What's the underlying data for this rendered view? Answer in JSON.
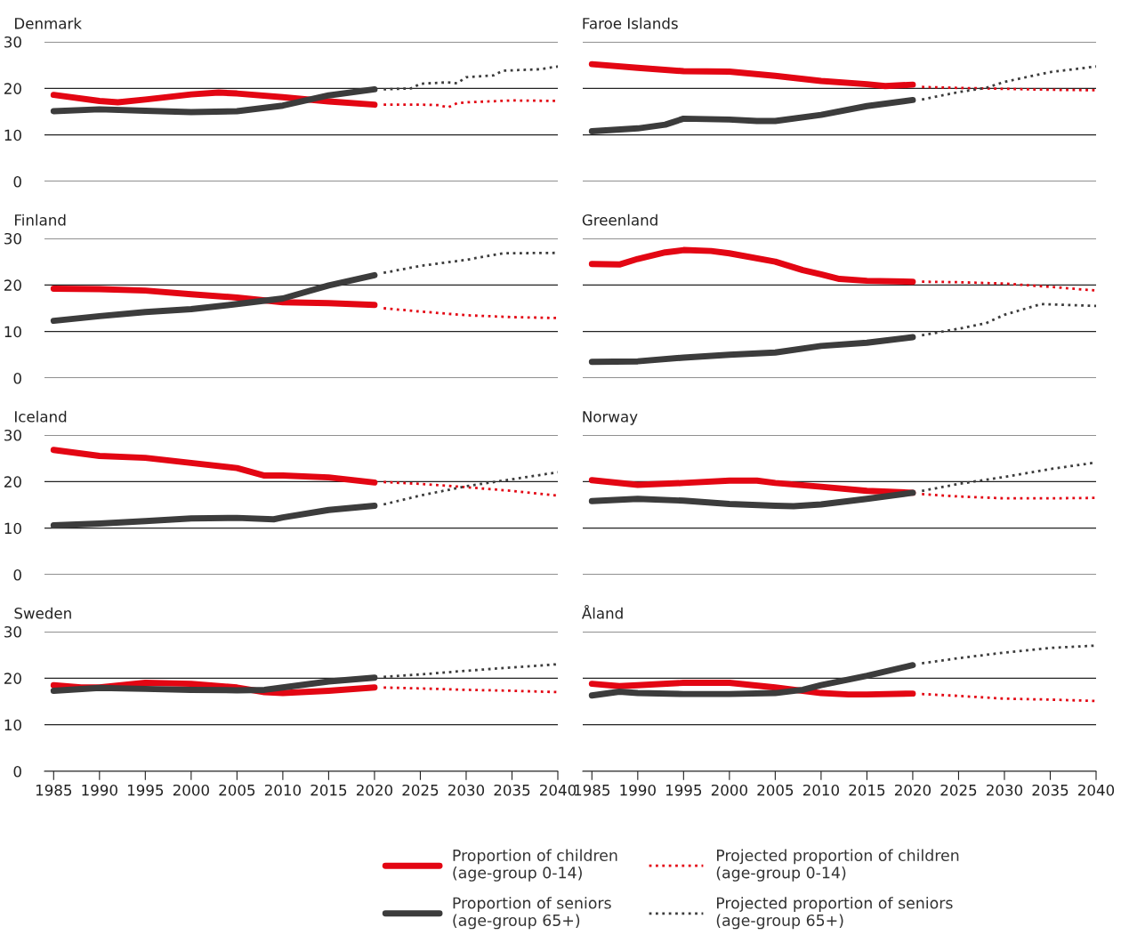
{
  "chart_data": [
    {
      "type": "line",
      "title": "Denmark",
      "xlim": [
        1984,
        2040
      ],
      "ylim": [
        0,
        30
      ],
      "yticks": [
        0,
        10,
        20,
        30
      ],
      "grid": "y",
      "tick_labels": "y",
      "series": [
        {
          "color": "#e30613",
          "line_style": "solid",
          "x": [
            1985,
            1990,
            1992,
            1995,
            2000,
            2003,
            2005,
            2010,
            2015,
            2020
          ],
          "values": [
            18.6,
            17.3,
            17.0,
            17.6,
            18.7,
            19.1,
            18.9,
            18.1,
            17.2,
            16.5
          ]
        },
        {
          "color": "#e30613",
          "line_style": "dotted",
          "x": [
            2021,
            2025,
            2027,
            2028,
            2029,
            2030,
            2035,
            2040
          ],
          "values": [
            16.5,
            16.5,
            16.4,
            15.9,
            16.8,
            17.0,
            17.4,
            17.3
          ]
        },
        {
          "color": "#3c3c3c",
          "line_style": "solid",
          "x": [
            1985,
            1990,
            1995,
            2000,
            2005,
            2010,
            2015,
            2020
          ],
          "values": [
            15.1,
            15.5,
            15.2,
            14.9,
            15.1,
            16.3,
            18.5,
            19.8
          ]
        },
        {
          "color": "#3c3c3c",
          "line_style": "dotted",
          "x": [
            2021,
            2024,
            2025,
            2028,
            2029,
            2030,
            2033,
            2034,
            2038,
            2040
          ],
          "values": [
            19.8,
            20.0,
            21.0,
            21.3,
            21.1,
            22.4,
            22.8,
            23.8,
            24.1,
            24.7
          ]
        }
      ]
    },
    {
      "type": "line",
      "title": "Faroe Islands",
      "xlim": [
        1984,
        2040
      ],
      "ylim": [
        0,
        30
      ],
      "yticks": [
        0,
        10,
        20,
        30
      ],
      "grid": "y",
      "tick_labels": false,
      "series": [
        {
          "color": "#e30613",
          "line_style": "solid",
          "x": [
            1985,
            1990,
            1995,
            2000,
            2005,
            2010,
            2015,
            2017,
            2020
          ],
          "values": [
            25.2,
            24.4,
            23.7,
            23.6,
            22.7,
            21.6,
            20.9,
            20.5,
            20.8
          ]
        },
        {
          "color": "#e30613",
          "line_style": "dotted",
          "x": [
            2021,
            2025,
            2030,
            2035,
            2040
          ],
          "values": [
            20.3,
            20.1,
            19.9,
            19.7,
            19.6
          ]
        },
        {
          "color": "#3c3c3c",
          "line_style": "solid",
          "x": [
            1985,
            1990,
            1993,
            1995,
            2000,
            2003,
            2005,
            2010,
            2015,
            2020
          ],
          "values": [
            10.8,
            11.4,
            12.2,
            13.5,
            13.3,
            13.0,
            13.0,
            14.3,
            16.2,
            17.5
          ]
        },
        {
          "color": "#3c3c3c",
          "line_style": "dotted",
          "x": [
            2021,
            2025,
            2028,
            2030,
            2035,
            2040
          ],
          "values": [
            17.6,
            19.2,
            20.1,
            21.4,
            23.5,
            24.7
          ]
        }
      ]
    },
    {
      "type": "line",
      "title": "Finland",
      "xlim": [
        1984,
        2040
      ],
      "ylim": [
        0,
        30
      ],
      "yticks": [
        0,
        10,
        20,
        30
      ],
      "grid": "y",
      "tick_labels": "y",
      "series": [
        {
          "color": "#e30613",
          "line_style": "solid",
          "x": [
            1985,
            1990,
            1995,
            2000,
            2005,
            2010,
            2015,
            2020
          ],
          "values": [
            19.2,
            19.1,
            18.8,
            18.0,
            17.3,
            16.3,
            16.1,
            15.7
          ]
        },
        {
          "color": "#e30613",
          "line_style": "dotted",
          "x": [
            2021,
            2025,
            2030,
            2035,
            2040
          ],
          "values": [
            15.0,
            14.3,
            13.5,
            13.1,
            12.9
          ]
        },
        {
          "color": "#3c3c3c",
          "line_style": "solid",
          "x": [
            1985,
            1990,
            1995,
            2000,
            2005,
            2010,
            2015,
            2020
          ],
          "values": [
            12.3,
            13.3,
            14.2,
            14.8,
            15.9,
            17.1,
            19.9,
            22.1
          ]
        },
        {
          "color": "#3c3c3c",
          "line_style": "dotted",
          "x": [
            2021,
            2025,
            2030,
            2034,
            2040
          ],
          "values": [
            22.6,
            24.1,
            25.4,
            26.8,
            26.9
          ]
        }
      ]
    },
    {
      "type": "line",
      "title": "Greenland",
      "xlim": [
        1984,
        2040
      ],
      "ylim": [
        0,
        30
      ],
      "yticks": [
        0,
        10,
        20,
        30
      ],
      "grid": "y",
      "tick_labels": false,
      "series": [
        {
          "color": "#e30613",
          "line_style": "solid",
          "x": [
            1985,
            1988,
            1990,
            1993,
            1995,
            1998,
            2000,
            2005,
            2008,
            2010,
            2012,
            2015,
            2020
          ],
          "values": [
            24.5,
            24.4,
            25.6,
            27.0,
            27.5,
            27.3,
            26.8,
            25.0,
            23.2,
            22.3,
            21.3,
            20.9,
            20.7
          ]
        },
        {
          "color": "#e30613",
          "line_style": "dotted",
          "x": [
            2021,
            2025,
            2030,
            2035,
            2040
          ],
          "values": [
            20.7,
            20.6,
            20.3,
            19.6,
            18.8
          ]
        },
        {
          "color": "#3c3c3c",
          "line_style": "solid",
          "x": [
            1985,
            1990,
            1995,
            2000,
            2005,
            2010,
            2015,
            2020
          ],
          "values": [
            3.5,
            3.6,
            4.4,
            5.0,
            5.5,
            6.9,
            7.6,
            8.8
          ]
        },
        {
          "color": "#3c3c3c",
          "line_style": "dotted",
          "x": [
            2021,
            2025,
            2028,
            2030,
            2034,
            2040
          ],
          "values": [
            9.2,
            10.6,
            11.8,
            13.6,
            15.9,
            15.5
          ]
        }
      ]
    },
    {
      "type": "line",
      "title": "Iceland",
      "xlim": [
        1984,
        2040
      ],
      "ylim": [
        0,
        30
      ],
      "yticks": [
        0,
        10,
        20,
        30
      ],
      "grid": "y",
      "tick_labels": "y",
      "series": [
        {
          "color": "#e30613",
          "line_style": "solid",
          "x": [
            1985,
            1990,
            1995,
            2000,
            2005,
            2008,
            2010,
            2015,
            2020
          ],
          "values": [
            26.8,
            25.5,
            25.1,
            24.0,
            22.9,
            21.3,
            21.3,
            20.9,
            19.8
          ]
        },
        {
          "color": "#e30613",
          "line_style": "dotted",
          "x": [
            2021,
            2025,
            2030,
            2035,
            2040
          ],
          "values": [
            19.9,
            19.5,
            18.8,
            18.0,
            17.0
          ]
        },
        {
          "color": "#3c3c3c",
          "line_style": "solid",
          "x": [
            1985,
            1990,
            1995,
            2000,
            2005,
            2009,
            2010,
            2015,
            2020
          ],
          "values": [
            10.6,
            11.0,
            11.5,
            12.1,
            12.2,
            11.9,
            12.3,
            13.9,
            14.8
          ]
        },
        {
          "color": "#3c3c3c",
          "line_style": "dotted",
          "x": [
            2021,
            2025,
            2030,
            2035,
            2040
          ],
          "values": [
            15.1,
            17.0,
            19.0,
            20.5,
            22.0
          ]
        }
      ]
    },
    {
      "type": "line",
      "title": "Norway",
      "xlim": [
        1984,
        2040
      ],
      "ylim": [
        0,
        30
      ],
      "yticks": [
        0,
        10,
        20,
        30
      ],
      "grid": "y",
      "tick_labels": false,
      "series": [
        {
          "color": "#e30613",
          "line_style": "solid",
          "x": [
            1985,
            1990,
            1995,
            2000,
            2003,
            2005,
            2010,
            2015,
            2020
          ],
          "values": [
            20.3,
            19.3,
            19.7,
            20.2,
            20.2,
            19.7,
            18.9,
            18.0,
            17.6
          ]
        },
        {
          "color": "#e30613",
          "line_style": "dotted",
          "x": [
            2021,
            2025,
            2030,
            2035,
            2040
          ],
          "values": [
            17.3,
            16.8,
            16.4,
            16.4,
            16.5
          ]
        },
        {
          "color": "#3c3c3c",
          "line_style": "solid",
          "x": [
            1985,
            1990,
            1995,
            2000,
            2005,
            2007,
            2010,
            2015,
            2020
          ],
          "values": [
            15.8,
            16.3,
            15.9,
            15.2,
            14.8,
            14.7,
            15.1,
            16.3,
            17.6
          ]
        },
        {
          "color": "#3c3c3c",
          "line_style": "dotted",
          "x": [
            2021,
            2025,
            2030,
            2035,
            2040
          ],
          "values": [
            18.0,
            19.5,
            21.0,
            22.7,
            24.1
          ]
        }
      ]
    },
    {
      "type": "line",
      "title": "Sweden",
      "xlim": [
        1984,
        2040
      ],
      "ylim": [
        0,
        30
      ],
      "yticks": [
        0,
        10,
        20,
        30
      ],
      "xticks": [
        1985,
        1990,
        1995,
        2000,
        2005,
        2010,
        2015,
        2020,
        2025,
        2030,
        2035,
        2040
      ],
      "grid": "y",
      "series": [
        {
          "color": "#e30613",
          "line_style": "solid",
          "x": [
            1985,
            1988,
            1990,
            1995,
            2000,
            2005,
            2008,
            2010,
            2015,
            2020
          ],
          "values": [
            18.5,
            18.0,
            18.0,
            19.0,
            18.8,
            18.0,
            17.0,
            16.8,
            17.3,
            18.0
          ]
        },
        {
          "color": "#e30613",
          "line_style": "dotted",
          "x": [
            2021,
            2025,
            2030,
            2035,
            2040
          ],
          "values": [
            18.0,
            17.8,
            17.5,
            17.3,
            17.0
          ]
        },
        {
          "color": "#3c3c3c",
          "line_style": "solid",
          "x": [
            1985,
            1990,
            1995,
            2000,
            2005,
            2008,
            2010,
            2015,
            2020
          ],
          "values": [
            17.3,
            17.9,
            17.7,
            17.5,
            17.4,
            17.5,
            18.0,
            19.3,
            20.1
          ]
        },
        {
          "color": "#3c3c3c",
          "line_style": "dotted",
          "x": [
            2021,
            2025,
            2030,
            2035,
            2040
          ],
          "values": [
            20.3,
            20.8,
            21.6,
            22.3,
            23.0
          ]
        }
      ]
    },
    {
      "type": "line",
      "title": "Åland",
      "xlim": [
        1984,
        2040
      ],
      "ylim": [
        0,
        30
      ],
      "yticks": [
        0,
        10,
        20,
        30
      ],
      "xticks": [
        1985,
        1990,
        1995,
        2000,
        2005,
        2010,
        2015,
        2020,
        2025,
        2030,
        2035,
        2040
      ],
      "grid": "y",
      "tick_labels": "x",
      "legend": "bottom",
      "series": [
        {
          "name": "Proportion of children\n(age-group 0-14)",
          "color": "#e30613",
          "line_style": "solid",
          "x": [
            1985,
            1988,
            1990,
            1995,
            2000,
            2005,
            2010,
            2013,
            2015,
            2020
          ],
          "values": [
            18.8,
            18.3,
            18.5,
            19.0,
            19.0,
            18.0,
            16.8,
            16.5,
            16.5,
            16.7
          ]
        },
        {
          "name": "Projected proportion of children\n(age-group 0-14)",
          "color": "#e30613",
          "line_style": "dotted",
          "x": [
            2021,
            2025,
            2030,
            2035,
            2040
          ],
          "values": [
            16.6,
            16.2,
            15.6,
            15.4,
            15.1
          ]
        },
        {
          "name": "Proportion of seniors\n(age-group 65+)",
          "color": "#3c3c3c",
          "line_style": "solid",
          "x": [
            1985,
            1988,
            1990,
            1995,
            2000,
            2005,
            2008,
            2010,
            2015,
            2020
          ],
          "values": [
            16.3,
            17.1,
            16.8,
            16.6,
            16.6,
            16.8,
            17.5,
            18.5,
            20.5,
            22.8
          ]
        },
        {
          "name": "Projected proportion of seniors\n(age-group 65+)",
          "color": "#3c3c3c",
          "line_style": "dotted",
          "x": [
            2021,
            2025,
            2030,
            2035,
            2040
          ],
          "values": [
            23.2,
            24.3,
            25.5,
            26.5,
            27.0
          ]
        }
      ]
    }
  ]
}
